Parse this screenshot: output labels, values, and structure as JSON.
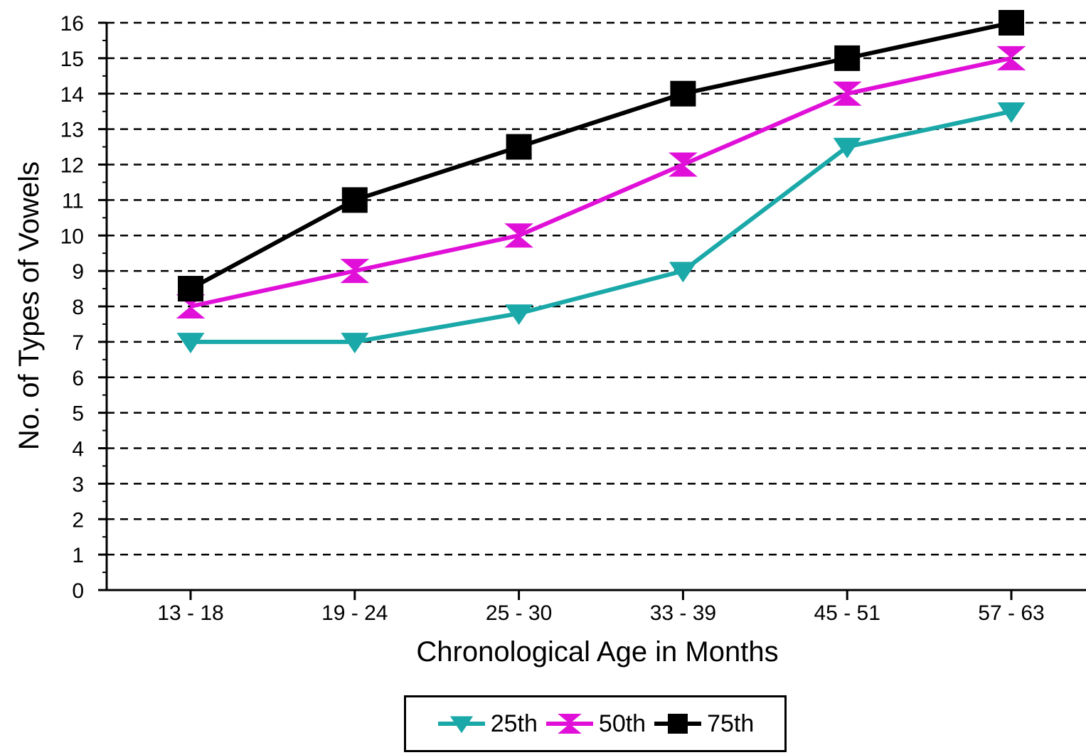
{
  "chart_data": {
    "type": "line",
    "title": "",
    "xlabel": "Chronological Age in Months",
    "ylabel": "No. of Types of Vowels",
    "categories": [
      "13 - 18",
      "19 - 24",
      "25 - 30",
      "33 - 39",
      "45 - 51",
      "57 - 63"
    ],
    "ylim": [
      0,
      16
    ],
    "yticks": [
      0,
      1,
      2,
      3,
      4,
      5,
      6,
      7,
      8,
      9,
      10,
      11,
      12,
      13,
      14,
      15,
      16
    ],
    "grid": "horizontal dashed",
    "legend_position": "bottom-center",
    "series": [
      {
        "name": "25th",
        "values": [
          7,
          7,
          7.8,
          9,
          12.5,
          13.5
        ],
        "color": "#1aa8a8",
        "marker": "triangle-down"
      },
      {
        "name": "50th",
        "values": [
          8,
          9,
          10,
          12,
          14,
          15
        ],
        "color": "#e010d8",
        "marker": "hourglass"
      },
      {
        "name": "75th",
        "values": [
          8.5,
          11,
          12.5,
          14,
          15,
          16
        ],
        "color": "#000000",
        "marker": "square"
      }
    ]
  }
}
